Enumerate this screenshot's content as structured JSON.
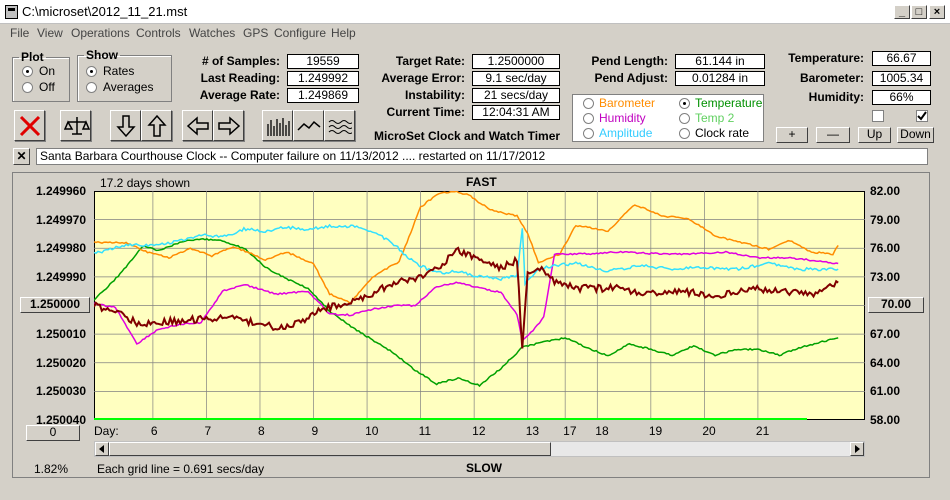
{
  "window": {
    "title": "C:\\microset\\2012_11_21.mst"
  },
  "menu": [
    "File",
    "View",
    "Operations",
    "Controls",
    "Watches",
    "GPS",
    "Configure",
    "Help"
  ],
  "plot_group": {
    "title": "Plot",
    "on": "On",
    "off": "Off",
    "selected": "On"
  },
  "show_group": {
    "title": "Show",
    "rates": "Rates",
    "averages": "Averages",
    "selected": "Rates"
  },
  "stats": {
    "samples_label": "# of Samples:",
    "samples": "19559",
    "last_label": "Last Reading:",
    "last": "1.249992",
    "avg_label": "Average Rate:",
    "avg": "1.249869",
    "target_label": "Target Rate:",
    "target": "1.2500000",
    "avgerr_label": "Average Error:",
    "avgerr": "9.1 sec/day",
    "instab_label": "Instability:",
    "instab": "21 secs/day",
    "time_label": "Current Time:",
    "time": "12:04:31 AM",
    "pendlen_label": "Pend Length:",
    "pendlen": "61.144 in",
    "pendadj_label": "Pend Adjust:",
    "pendadj": "0.01284 in",
    "temp_label": "Temperature:",
    "temp": "66.67",
    "baro_label": "Barometer:",
    "baro": "1005.34",
    "hum_label": "Humidity:",
    "hum": "66%"
  },
  "app_caption": "MicroSet Clock and Watch Timer",
  "sensors": {
    "barometer": "Barometer",
    "humidity": "Humidity",
    "amplitude": "Amplitude",
    "temperature": "Temperature",
    "temp2": "Temp 2",
    "clock_rate": "Clock rate",
    "selected": "Temperature"
  },
  "adjust_buttons": {
    "plus": "+",
    "minus": "—",
    "up": "Up",
    "down": "Down"
  },
  "note": "Santa Barbara Courthouse Clock   --  Computer failure on 11/13/2012   .... restarted on 11/17/2012",
  "chart_header": {
    "days_shown": "17.2 days shown",
    "fast": "FAST",
    "slow": "SLOW",
    "grid_note": "Each grid line = 0.691 secs/day",
    "percent": "1.82%",
    "left_value": "1.250000",
    "right_value": "70.00",
    "scroll_value": "0",
    "day_label": "Day:"
  },
  "colors": {
    "plot_bg": "#ffffc0",
    "rate": "#800000",
    "barometer": "#ff8c00",
    "humidity": "#e000e0",
    "amplitude": "#33e0ff",
    "temperature": "#00a000",
    "temp2": "#00c000",
    "grid": "#808080"
  },
  "chart_data": {
    "type": "line",
    "y_left_ticks": [
      "1.249960",
      "1.249970",
      "1.249980",
      "1.249990",
      "1.250000",
      "1.250010",
      "1.250020",
      "1.250030",
      "1.250040"
    ],
    "y_left_range": [
      1.24996,
      1.25004
    ],
    "y_right_ticks": [
      "82.00",
      "79.00",
      "76.00",
      "73.00",
      "70.00",
      "67.00",
      "64.00",
      "61.00",
      "58.00"
    ],
    "y_right_range": [
      58,
      82
    ],
    "x_ticks": [
      "6",
      "7",
      "8",
      "9",
      "10",
      "11",
      "12",
      "13",
      "17",
      "18",
      "19",
      "20",
      "21"
    ],
    "x_positions": [
      5.3,
      6.3,
      7.3,
      8.3,
      9.3,
      10.3,
      11.3,
      12.3,
      13.0,
      13.6,
      14.6,
      15.6,
      16.6
    ],
    "x_range": [
      4.2,
      18.6
    ],
    "series": [
      {
        "key": "rate",
        "points": [
          [
            4.2,
            1.25
          ],
          [
            4.6,
            1.250002
          ],
          [
            5.0,
            1.250006
          ],
          [
            5.4,
            1.250006
          ],
          [
            6.0,
            1.250005
          ],
          [
            6.6,
            1.250004
          ],
          [
            7.2,
            1.250006
          ],
          [
            7.7,
            1.250008
          ],
          [
            8.1,
            1.250005
          ],
          [
            8.5,
            1.250001
          ],
          [
            9.0,
            1.249999
          ],
          [
            9.4,
            1.249996
          ],
          [
            9.8,
            1.249992
          ],
          [
            10.2,
            1.249991
          ],
          [
            10.6,
            1.249987
          ],
          [
            11.0,
            1.249981
          ],
          [
            11.4,
            1.249984
          ],
          [
            11.8,
            1.249987
          ],
          [
            12.1,
            1.249984
          ],
          [
            12.2,
            1.250015
          ],
          [
            12.3,
            1.249989
          ],
          [
            12.6,
            1.249987
          ],
          [
            12.8,
            1.249992
          ],
          [
            13.2,
            1.249994
          ],
          [
            14.0,
            1.249994
          ],
          [
            14.6,
            1.249996
          ],
          [
            15.2,
            1.249995
          ],
          [
            15.8,
            1.249997
          ],
          [
            16.4,
            1.249994
          ],
          [
            17.0,
            1.249995
          ],
          [
            17.6,
            1.249996
          ],
          [
            18.1,
            1.249992
          ]
        ]
      },
      {
        "key": "barometer",
        "points": [
          [
            4.2,
            76.6
          ],
          [
            4.8,
            76.6
          ],
          [
            5.2,
            75.6
          ],
          [
            5.6,
            75.0
          ],
          [
            6.0,
            76.0
          ],
          [
            6.4,
            75.2
          ],
          [
            6.8,
            76.2
          ],
          [
            7.4,
            74.8
          ],
          [
            7.8,
            75.6
          ],
          [
            8.3,
            74.4
          ],
          [
            8.6,
            71.2
          ],
          [
            9.0,
            70.3
          ],
          [
            9.4,
            73.0
          ],
          [
            9.9,
            74.6
          ],
          [
            10.3,
            80.3
          ],
          [
            10.6,
            81.6
          ],
          [
            10.9,
            82.0
          ],
          [
            11.2,
            81.6
          ],
          [
            11.6,
            80.0
          ],
          [
            12.1,
            79.4
          ],
          [
            12.3,
            77.6
          ],
          [
            12.5,
            74.5
          ],
          [
            12.9,
            75.4
          ],
          [
            13.2,
            78.4
          ],
          [
            13.8,
            77.8
          ],
          [
            14.3,
            80.6
          ],
          [
            14.8,
            79.4
          ],
          [
            15.3,
            79.1
          ],
          [
            15.8,
            77.3
          ],
          [
            16.3,
            76.6
          ],
          [
            16.8,
            75.9
          ],
          [
            17.2,
            76.8
          ],
          [
            17.6,
            75.6
          ],
          [
            18.0,
            75.4
          ],
          [
            18.1,
            76.3
          ]
        ]
      },
      {
        "key": "humidity",
        "points": [
          [
            4.2,
            70.2
          ],
          [
            4.6,
            69.8
          ],
          [
            5.0,
            66.0
          ],
          [
            5.4,
            67.5
          ],
          [
            5.8,
            68.0
          ],
          [
            6.2,
            68.2
          ],
          [
            6.6,
            71.5
          ],
          [
            7.0,
            72.2
          ],
          [
            7.6,
            71.2
          ],
          [
            8.2,
            71.5
          ],
          [
            8.6,
            69.1
          ],
          [
            9.0,
            69.0
          ],
          [
            9.4,
            69.6
          ],
          [
            9.8,
            70.0
          ],
          [
            10.2,
            70.0
          ],
          [
            10.6,
            72.0
          ],
          [
            11.0,
            72.4
          ],
          [
            11.4,
            71.8
          ],
          [
            11.8,
            71.4
          ],
          [
            12.1,
            69.0
          ],
          [
            12.2,
            66.4
          ],
          [
            12.4,
            67.4
          ],
          [
            12.6,
            68.8
          ],
          [
            12.8,
            75.4
          ],
          [
            13.4,
            75.4
          ],
          [
            14.0,
            75.6
          ],
          [
            14.8,
            75.4
          ],
          [
            15.4,
            75.4
          ],
          [
            16.0,
            75.6
          ],
          [
            16.6,
            75.0
          ],
          [
            17.2,
            75.0
          ],
          [
            18.1,
            74.4
          ]
        ]
      },
      {
        "key": "amplitude",
        "points": [
          [
            4.2,
            75.4
          ],
          [
            4.8,
            76.4
          ],
          [
            5.4,
            76.3
          ],
          [
            5.8,
            76.8
          ],
          [
            6.2,
            77.4
          ],
          [
            6.6,
            77.2
          ],
          [
            7.0,
            78.0
          ],
          [
            7.4,
            77.8
          ],
          [
            7.8,
            78.2
          ],
          [
            8.2,
            78.0
          ],
          [
            8.6,
            78.3
          ],
          [
            9.0,
            78.3
          ],
          [
            9.4,
            77.8
          ],
          [
            9.8,
            76.4
          ],
          [
            10.2,
            74.4
          ],
          [
            10.6,
            73.4
          ],
          [
            11.0,
            73.6
          ],
          [
            11.4,
            73.0
          ],
          [
            11.8,
            72.8
          ],
          [
            12.1,
            73.2
          ],
          [
            12.2,
            78.2
          ],
          [
            12.25,
            72.4
          ],
          [
            12.5,
            73.8
          ],
          [
            12.8,
            74.2
          ],
          [
            13.2,
            74.4
          ],
          [
            13.8,
            73.6
          ],
          [
            14.4,
            74.2
          ],
          [
            15.0,
            73.8
          ],
          [
            15.6,
            74.0
          ],
          [
            16.2,
            73.8
          ],
          [
            16.8,
            74.4
          ],
          [
            17.4,
            73.8
          ],
          [
            18.1,
            73.8
          ]
        ]
      },
      {
        "key": "temperature",
        "points": [
          [
            4.2,
            70.6
          ],
          [
            4.5,
            72.2
          ],
          [
            4.8,
            74.0
          ],
          [
            5.1,
            76.2
          ],
          [
            5.4,
            75.8
          ],
          [
            5.8,
            76.6
          ],
          [
            6.2,
            77.0
          ],
          [
            6.6,
            76.8
          ],
          [
            7.0,
            76.0
          ],
          [
            7.4,
            74.0
          ],
          [
            7.8,
            72.8
          ],
          [
            8.2,
            71.8
          ],
          [
            8.6,
            69.4
          ],
          [
            9.0,
            67.8
          ],
          [
            9.4,
            66.4
          ],
          [
            9.8,
            65.0
          ],
          [
            10.2,
            63.2
          ],
          [
            10.6,
            61.8
          ],
          [
            11.0,
            62.4
          ],
          [
            11.4,
            61.6
          ],
          [
            11.8,
            63.4
          ],
          [
            12.2,
            65.6
          ],
          [
            12.6,
            66.2
          ],
          [
            13.0,
            66.6
          ],
          [
            13.4,
            65.6
          ],
          [
            13.8,
            64.7
          ],
          [
            14.2,
            66.0
          ],
          [
            14.6,
            65.4
          ],
          [
            15.0,
            64.8
          ],
          [
            15.4,
            65.8
          ],
          [
            15.8,
            64.8
          ],
          [
            16.2,
            65.4
          ],
          [
            16.6,
            65.4
          ],
          [
            17.0,
            64.8
          ],
          [
            17.4,
            65.6
          ],
          [
            17.8,
            66.2
          ],
          [
            18.1,
            66.6
          ]
        ]
      }
    ]
  }
}
